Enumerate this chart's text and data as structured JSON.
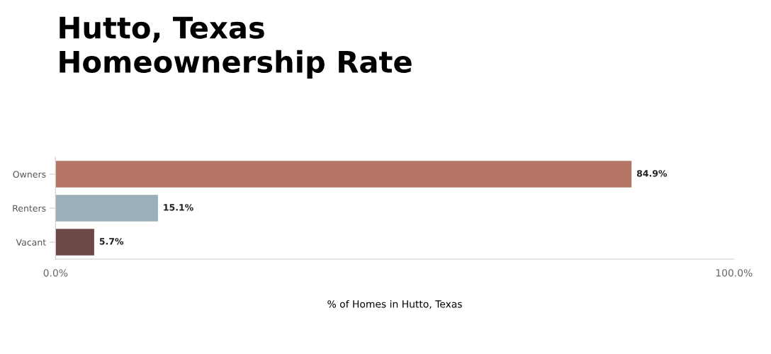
{
  "chart_data": {
    "type": "bar",
    "orientation": "horizontal",
    "title": "Hutto, Texas\nHomeownership Rate",
    "xlabel": "% of Homes in Hutto, Texas",
    "categories": [
      "Owners",
      "Renters",
      "Vacant"
    ],
    "values": [
      84.9,
      15.1,
      5.7
    ],
    "colors": [
      "#b57666",
      "#9aafba",
      "#6e4848"
    ],
    "value_labels": [
      "84.9%",
      "15.1%",
      "5.7%"
    ],
    "xlim": [
      0,
      100
    ],
    "xticks": [
      {
        "value": 0,
        "label": "0.0%"
      },
      {
        "value": 100,
        "label": "100.0%"
      }
    ],
    "grid": false,
    "legend": false
  }
}
